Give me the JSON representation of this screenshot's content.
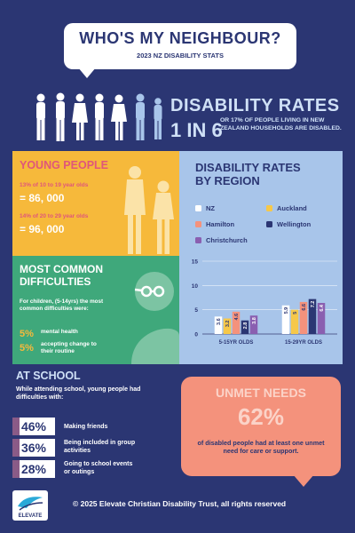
{
  "header": {
    "title": "WHO'S MY NEIGHBOUR?",
    "subtitle": "2023 NZ DISABILITY STATS"
  },
  "rates": {
    "title": "DISABILITY RATES",
    "big": "1 IN 6",
    "desc": "OR 17% OF PEOPLE LIVING IN NEW ZEALAND HOUSEHOLDS ARE DISABLED."
  },
  "young": {
    "title": "YOUNG PEOPLE",
    "line1": "13% of 10 to 19 year olds",
    "val1": "= 86, 000",
    "line2": "14% of 20 to 29 year olds",
    "val2": "= 96, 000"
  },
  "region": {
    "title_line1": "DISABILITY RATES",
    "title_line2": "BY REGION"
  },
  "colors": {
    "nz": "#ffffff",
    "auckland": "#f6c84a",
    "hamilton": "#f4927c",
    "wellington": "#2b3673",
    "christchurch": "#8a5fb0"
  },
  "chart_data": {
    "type": "bar",
    "categories": [
      "5-15YR OLDS",
      "15-29YR OLDS"
    ],
    "series": [
      {
        "name": "NZ",
        "values": [
          3.6,
          5.9
        ]
      },
      {
        "name": "Auckland",
        "values": [
          3.2,
          5.0
        ]
      },
      {
        "name": "Hamilton",
        "values": [
          4.6,
          6.6
        ]
      },
      {
        "name": "Wellington",
        "values": [
          2.8,
          7.2
        ]
      },
      {
        "name": "Christchurch",
        "values": [
          3.8,
          6.4
        ]
      }
    ],
    "y_ticks": [
      "0",
      "5",
      "10",
      "15"
    ],
    "ylim": [
      0,
      15
    ],
    "legend_position": "top"
  },
  "difficulties": {
    "title_line1": "MOST COMMON",
    "title_line2": "DIFFICULTIES",
    "intro": "For children, (5-14yrs) the most common difficulties were:",
    "items": [
      {
        "pct": "5%",
        "label": "mental health"
      },
      {
        "pct": "5%",
        "label": "accepting change to their routine"
      }
    ]
  },
  "school": {
    "title": "AT SCHOOL",
    "intro": "While attending school, young people had difficulties with:",
    "items": [
      {
        "pct": "46%",
        "label": "Making friends"
      },
      {
        "pct": "36%",
        "label": "Being included in group activities"
      },
      {
        "pct": "28%",
        "label": "Going to school events or outings"
      }
    ]
  },
  "unmet": {
    "title": "UNMET NEEDS",
    "pct": "62%",
    "desc": "of disabled people had at least one unmet need for care or support."
  },
  "footer": {
    "logo_text": "ELEVATE",
    "text": "© 2025 Elevate Christian Disability Trust, all rights reserved"
  }
}
